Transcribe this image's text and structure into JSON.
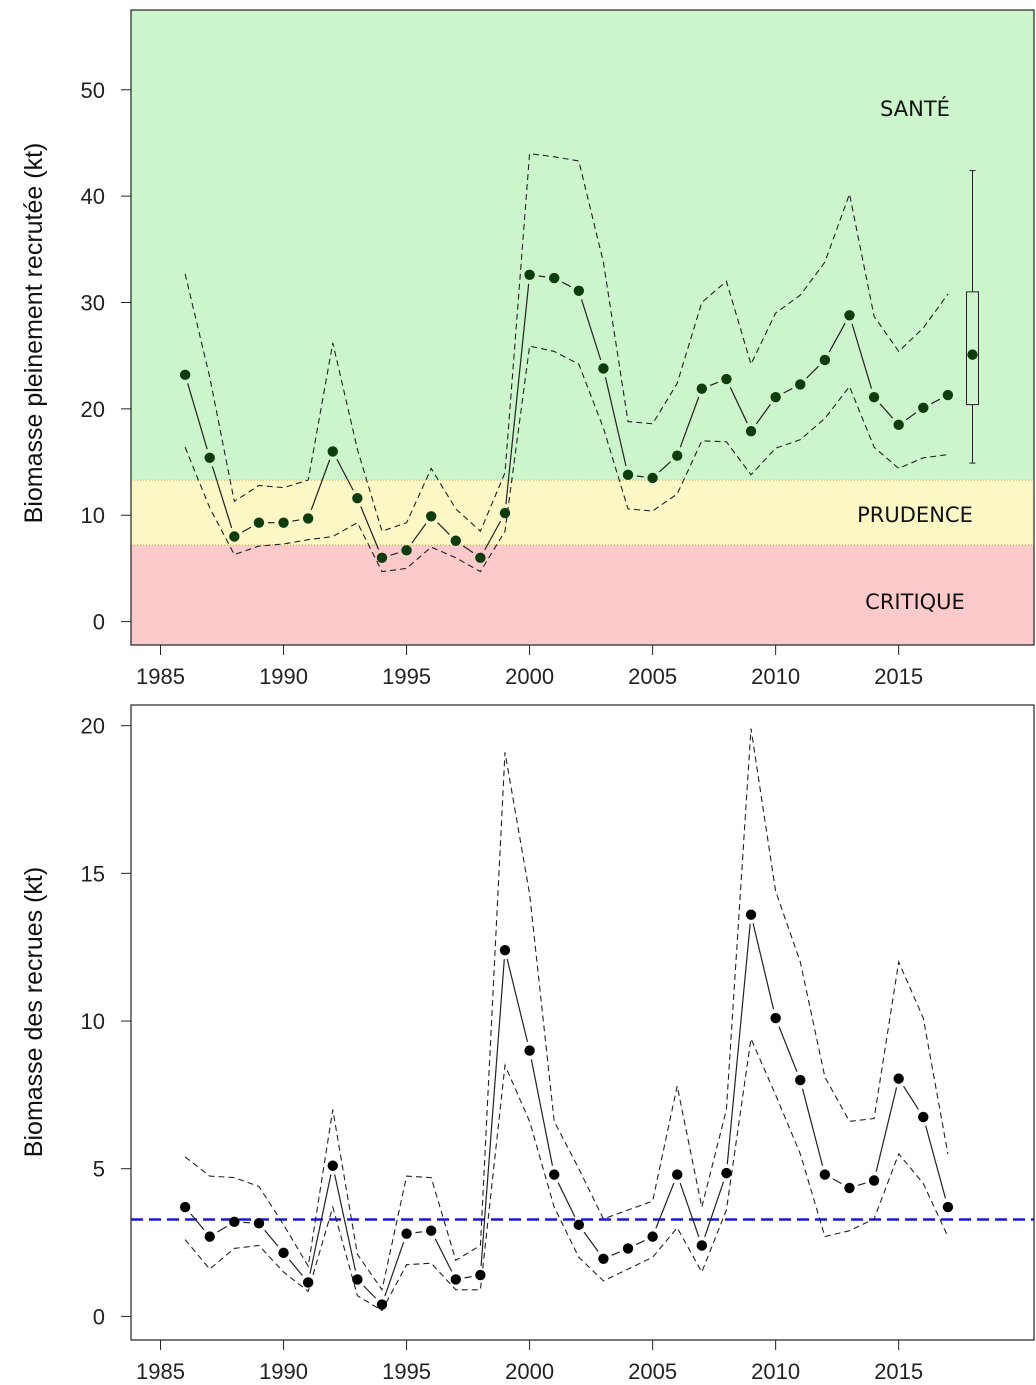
{
  "chart_data": [
    {
      "type": "line",
      "ylabel": "Biomasse pleinement recrutée (kt)",
      "xlabel": "",
      "xlim": [
        1983.8,
        2020.5
      ],
      "ylim": [
        -2.2,
        57.5
      ],
      "x_ticks": [
        1985,
        1990,
        1995,
        2000,
        2005,
        2010,
        2015
      ],
      "y_ticks": [
        0,
        10,
        20,
        30,
        40,
        50
      ],
      "zones": [
        {
          "name": "SANTÉ",
          "from": 13.3,
          "to": 57.5,
          "color": "#ccf5cc"
        },
        {
          "name": "PRUDENCE",
          "from": 7.2,
          "to": 13.3,
          "color": "#fbf8c6"
        },
        {
          "name": "CRITIQUE",
          "from": -2.2,
          "to": 7.2,
          "color": "#fccaca"
        }
      ],
      "colors": {
        "points": "#0d3d0d",
        "lines": "#222222"
      },
      "years": [
        1986,
        1987,
        1988,
        1989,
        1990,
        1991,
        1992,
        1993,
        1994,
        1995,
        1996,
        1997,
        1998,
        1999,
        2000,
        2001,
        2002,
        2003,
        2004,
        2005,
        2006,
        2007,
        2008,
        2009,
        2010,
        2011,
        2012,
        2013,
        2014,
        2015,
        2016,
        2017
      ],
      "series": [
        {
          "name": "median",
          "values": [
            23.2,
            15.4,
            8.0,
            9.3,
            9.3,
            9.7,
            16.0,
            11.6,
            6.0,
            6.7,
            9.9,
            7.6,
            6.0,
            10.2,
            32.6,
            32.3,
            31.1,
            23.8,
            13.8,
            13.5,
            15.6,
            21.9,
            22.8,
            17.9,
            21.1,
            22.3,
            24.6,
            28.8,
            21.1,
            18.5,
            20.1,
            21.3
          ]
        },
        {
          "name": "upper",
          "values": [
            32.7,
            23.0,
            11.3,
            12.8,
            12.6,
            13.3,
            26.2,
            16.2,
            8.5,
            9.3,
            14.4,
            10.6,
            8.5,
            14.0,
            44.0,
            43.7,
            43.3,
            33.8,
            18.8,
            18.6,
            22.4,
            30.0,
            32.0,
            24.2,
            29.0,
            30.7,
            33.8,
            40.2,
            28.7,
            25.4,
            27.6,
            30.8
          ]
        },
        {
          "name": "lower",
          "values": [
            16.4,
            10.7,
            6.3,
            7.1,
            7.3,
            7.7,
            8.0,
            9.3,
            4.7,
            5.0,
            7.0,
            6.0,
            4.7,
            8.5,
            25.9,
            25.4,
            24.2,
            18.2,
            10.6,
            10.4,
            12.0,
            17.0,
            16.9,
            13.8,
            16.3,
            17.1,
            19.1,
            22.1,
            16.4,
            14.4,
            15.4,
            15.7
          ]
        }
      ],
      "projection": {
        "year": 2018,
        "median": 25.1,
        "q1": 20.4,
        "q3": 31.0,
        "low": 14.9,
        "high": 42.4
      }
    },
    {
      "type": "line",
      "ylabel": "Biomasse des recrues (kt)",
      "xlabel": "",
      "xlim": [
        1983.8,
        2020.5
      ],
      "ylim": [
        -0.8,
        20.7
      ],
      "x_ticks": [
        1985,
        1990,
        1995,
        2000,
        2005,
        2010,
        2015
      ],
      "y_ticks": [
        0,
        5,
        10,
        15,
        20
      ],
      "reference_line": {
        "value": 3.28,
        "color": "#1a1ad6"
      },
      "colors": {
        "points": "#000000",
        "lines": "#222222"
      },
      "years": [
        1986,
        1987,
        1988,
        1989,
        1990,
        1991,
        1992,
        1993,
        1994,
        1995,
        1996,
        1997,
        1998,
        1999,
        2000,
        2001,
        2002,
        2003,
        2004,
        2005,
        2006,
        2007,
        2008,
        2009,
        2010,
        2011,
        2012,
        2013,
        2014,
        2015,
        2016,
        2017
      ],
      "series": [
        {
          "name": "median",
          "values": [
            3.7,
            2.7,
            3.2,
            3.15,
            2.15,
            1.15,
            5.1,
            1.25,
            0.4,
            2.8,
            2.9,
            1.25,
            1.4,
            12.4,
            9.0,
            4.8,
            3.1,
            1.95,
            2.3,
            2.7,
            4.8,
            2.4,
            4.85,
            13.6,
            10.1,
            8.0,
            4.8,
            4.35,
            4.6,
            8.05,
            6.75,
            3.7
          ]
        },
        {
          "name": "upper",
          "values": [
            5.4,
            4.75,
            4.7,
            4.4,
            3.1,
            1.7,
            7.0,
            2.1,
            0.9,
            4.75,
            4.7,
            1.9,
            2.4,
            19.1,
            14.3,
            6.6,
            5.0,
            3.3,
            3.6,
            3.9,
            7.8,
            3.7,
            7.0,
            19.9,
            14.4,
            12.0,
            8.1,
            6.6,
            6.7,
            12.0,
            10.1,
            5.5
          ]
        },
        {
          "name": "lower",
          "values": [
            2.6,
            1.6,
            2.3,
            2.4,
            1.5,
            0.85,
            3.7,
            0.7,
            0.2,
            1.75,
            1.8,
            0.9,
            0.9,
            8.5,
            6.6,
            3.7,
            2.0,
            1.2,
            1.6,
            2.0,
            3.0,
            1.5,
            3.6,
            9.4,
            7.5,
            5.5,
            2.7,
            2.9,
            3.3,
            5.5,
            4.5,
            2.7
          ]
        }
      ]
    }
  ]
}
